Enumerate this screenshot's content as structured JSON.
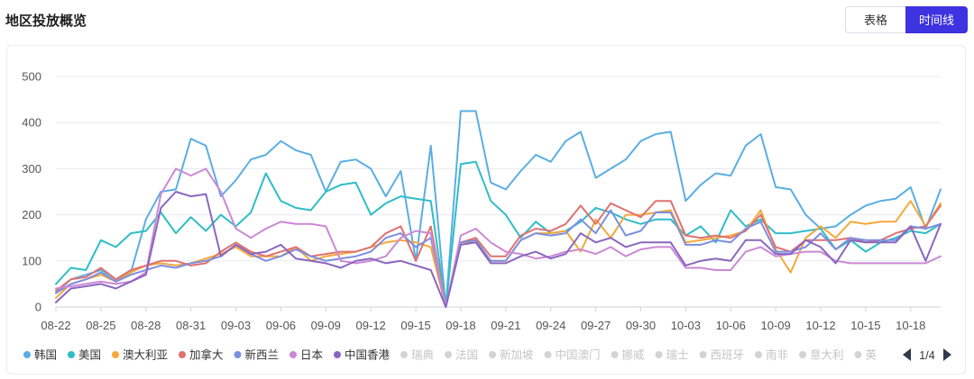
{
  "header": {
    "title": "地区投放概览"
  },
  "view_toggle": {
    "table_label": "表格",
    "timeline_label": "时间线"
  },
  "pager": {
    "text": "1/4"
  },
  "chart_data": {
    "type": "line",
    "ylim": [
      0,
      500
    ],
    "y_ticks": [
      0,
      100,
      200,
      300,
      400,
      500
    ],
    "x_tick_labels": [
      "08-22",
      "08-25",
      "08-28",
      "08-31",
      "09-03",
      "09-06",
      "09-09",
      "09-12",
      "09-15",
      "09-18",
      "09-21",
      "09-24",
      "09-27",
      "09-30",
      "10-03",
      "10-06",
      "10-09",
      "10-12",
      "10-15",
      "10-18"
    ],
    "n_points": 60,
    "grid": true,
    "legend_position": "bottom",
    "series": [
      {
        "name": "韩国",
        "color": "#5aaee3",
        "values": [
          30,
          60,
          70,
          80,
          60,
          75,
          190,
          250,
          255,
          365,
          350,
          240,
          275,
          320,
          330,
          360,
          340,
          330,
          250,
          315,
          320,
          300,
          240,
          295,
          100,
          350,
          0,
          425,
          425,
          270,
          255,
          295,
          330,
          315,
          360,
          380,
          280,
          300,
          320,
          360,
          375,
          380,
          230,
          265,
          290,
          285,
          350,
          375,
          260,
          255,
          200,
          170,
          175,
          200,
          220,
          230,
          235,
          260,
          170,
          255
        ]
      },
      {
        "name": "美国",
        "color": "#2ebdc7",
        "values": [
          50,
          85,
          80,
          145,
          130,
          160,
          165,
          205,
          160,
          195,
          165,
          200,
          175,
          205,
          290,
          230,
          215,
          210,
          250,
          265,
          270,
          200,
          225,
          240,
          235,
          230,
          0,
          310,
          315,
          230,
          200,
          150,
          185,
          160,
          165,
          185,
          215,
          205,
          190,
          180,
          190,
          190,
          155,
          175,
          140,
          210,
          175,
          190,
          160,
          160,
          165,
          170,
          125,
          145,
          120,
          140,
          150,
          165,
          160,
          180
        ]
      },
      {
        "name": "澳大利亚",
        "color": "#f3a93a",
        "values": [
          20,
          50,
          60,
          70,
          55,
          75,
          90,
          95,
          90,
          95,
          105,
          115,
          130,
          110,
          110,
          110,
          130,
          100,
          110,
          115,
          120,
          130,
          140,
          145,
          140,
          130,
          0,
          140,
          140,
          100,
          100,
          145,
          160,
          160,
          165,
          120,
          190,
          150,
          200,
          200,
          205,
          210,
          140,
          145,
          150,
          155,
          165,
          210,
          125,
          75,
          150,
          175,
          150,
          185,
          180,
          185,
          185,
          230,
          175,
          225
        ]
      },
      {
        "name": "加拿大",
        "color": "#e07070",
        "values": [
          35,
          60,
          65,
          85,
          60,
          80,
          90,
          100,
          100,
          90,
          95,
          120,
          140,
          120,
          110,
          120,
          130,
          110,
          115,
          120,
          120,
          130,
          160,
          175,
          100,
          175,
          0,
          140,
          150,
          110,
          110,
          155,
          170,
          165,
          180,
          220,
          180,
          225,
          210,
          195,
          230,
          230,
          155,
          150,
          155,
          150,
          165,
          200,
          130,
          120,
          145,
          145,
          145,
          150,
          140,
          145,
          160,
          170,
          175,
          220
        ]
      },
      {
        "name": "新西兰",
        "color": "#7b8fe0",
        "values": [
          30,
          50,
          60,
          75,
          55,
          70,
          80,
          90,
          85,
          95,
          100,
          110,
          135,
          115,
          100,
          110,
          125,
          110,
          100,
          105,
          110,
          120,
          150,
          160,
          130,
          150,
          0,
          140,
          145,
          100,
          100,
          145,
          160,
          155,
          160,
          190,
          160,
          210,
          155,
          165,
          205,
          205,
          135,
          135,
          145,
          140,
          170,
          185,
          120,
          120,
          130,
          160,
          125,
          150,
          145,
          145,
          145,
          175,
          170,
          180
        ]
      },
      {
        "name": "日本",
        "color": "#cc88d6",
        "values": [
          40,
          45,
          50,
          55,
          50,
          55,
          75,
          245,
          300,
          285,
          300,
          250,
          170,
          150,
          170,
          185,
          180,
          180,
          175,
          100,
          95,
          100,
          110,
          150,
          165,
          160,
          0,
          155,
          170,
          140,
          120,
          115,
          105,
          110,
          120,
          125,
          115,
          130,
          110,
          125,
          130,
          130,
          85,
          85,
          80,
          80,
          120,
          130,
          110,
          115,
          120,
          120,
          100,
          95,
          95,
          95,
          95,
          95,
          95,
          110
        ]
      },
      {
        "name": "中国香港",
        "color": "#8a66c0",
        "values": [
          10,
          40,
          45,
          50,
          40,
          55,
          70,
          215,
          250,
          240,
          245,
          110,
          135,
          115,
          120,
          135,
          105,
          100,
          95,
          85,
          100,
          105,
          95,
          100,
          90,
          80,
          0,
          135,
          140,
          95,
          95,
          110,
          120,
          105,
          115,
          160,
          140,
          150,
          130,
          140,
          140,
          140,
          90,
          100,
          105,
          100,
          145,
          145,
          115,
          115,
          145,
          130,
          95,
          145,
          140,
          140,
          140,
          175,
          100,
          180
        ]
      }
    ],
    "inactive_legend": [
      "瑞典",
      "法国",
      "新加坡",
      "中国澳门",
      "挪威",
      "瑞士",
      "西班牙",
      "南非",
      "意大利",
      "英"
    ]
  }
}
